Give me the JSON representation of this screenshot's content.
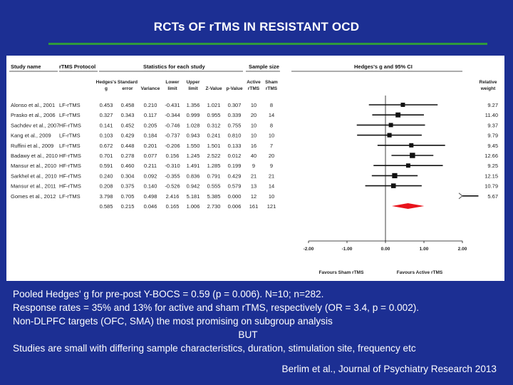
{
  "title": "RCTs OF rTMS IN RESISTANT OCD",
  "forest_plot": {
    "headers": {
      "study": "Study name",
      "protocol": "rTMS Protocol",
      "stats_group": "Statistics for each study",
      "sample_group": "Sample size",
      "ci_group": "Hedges's g and 95% CI",
      "hedges_g_1": "Hedges's",
      "hedges_g_2": "g",
      "se_1": "Standard",
      "se_2": "error",
      "variance": "Variance",
      "lower_1": "Lower",
      "lower_2": "limit",
      "upper_1": "Upper",
      "upper_2": "limit",
      "zvalue": "Z-Value",
      "pvalue": "p-Value",
      "active_1": "Active",
      "active_2": "rTMS",
      "sham_1": "Sham",
      "sham_2": "rTMS",
      "weight_1": "Relative",
      "weight_2": "weight"
    },
    "axis_ticks": [
      "-2.00",
      "-1.00",
      "0.00",
      "1.00",
      "2.00"
    ],
    "axis_label_left": "Favours Sham rTMS",
    "axis_label_right": "Favours Active rTMS"
  },
  "chart_data": {
    "type": "forest",
    "xlim": [
      -2,
      2
    ],
    "studies": [
      {
        "study": "Alonso et al., 2001",
        "protocol": "LF-rTMS",
        "g": "0.453",
        "se": "0.458",
        "variance": "0.210",
        "lower": "-0.431",
        "upper": "1.356",
        "z": "1.021",
        "p": "0.307",
        "active": "10",
        "sham": "8",
        "weight": "9.27"
      },
      {
        "study": "Prasko et al., 2006",
        "protocol": "LF-rTMS",
        "g": "0.327",
        "se": "0.343",
        "variance": "0.117",
        "lower": "-0.344",
        "upper": "0.999",
        "z": "0.955",
        "p": "0.339",
        "active": "20",
        "sham": "14",
        "weight": "11.40"
      },
      {
        "study": "Sachdev et al., 2007",
        "protocol": "HF-rTMS",
        "g": "0.141",
        "se": "0.452",
        "variance": "0.205",
        "lower": "-0.746",
        "upper": "1.028",
        "z": "0.312",
        "p": "0.755",
        "active": "10",
        "sham": "8",
        "weight": "9.37"
      },
      {
        "study": "Kang et al., 2009",
        "protocol": "LF-rTMS",
        "g": "0.103",
        "se": "0.429",
        "variance": "0.184",
        "lower": "-0.737",
        "upper": "0.943",
        "z": "0.241",
        "p": "0.810",
        "active": "10",
        "sham": "10",
        "weight": "9.79"
      },
      {
        "study": "Ruffini et al., 2009",
        "protocol": "LF-rTMS",
        "g": "0.672",
        "se": "0.448",
        "variance": "0.201",
        "lower": "-0.206",
        "upper": "1.550",
        "z": "1.501",
        "p": "0.133",
        "active": "16",
        "sham": "7",
        "weight": "9.45"
      },
      {
        "study": "Badawy et al., 2010",
        "protocol": "HF-rTMS",
        "g": "0.701",
        "se": "0.278",
        "variance": "0.077",
        "lower": "0.156",
        "upper": "1.245",
        "z": "2.522",
        "p": "0.012",
        "active": "40",
        "sham": "20",
        "weight": "12.66"
      },
      {
        "study": "Mansur et al., 2010",
        "protocol": "HF-rTMS",
        "g": "0.591",
        "se": "0.460",
        "variance": "0.211",
        "lower": "-0.310",
        "upper": "1.491",
        "z": "1.285",
        "p": "0.199",
        "active": "9",
        "sham": "9",
        "weight": "9.25"
      },
      {
        "study": "Sarkhel et al., 2010",
        "protocol": "HF-rTMS",
        "g": "0.240",
        "se": "0.304",
        "variance": "0.092",
        "lower": "-0.355",
        "upper": "0.836",
        "z": "0.791",
        "p": "0.429",
        "active": "21",
        "sham": "21",
        "weight": "12.15"
      },
      {
        "study": "Mansur et al., 2011",
        "protocol": "HF-rTMS",
        "g": "0.208",
        "se": "0.375",
        "variance": "0.140",
        "lower": "-0.526",
        "upper": "0.942",
        "z": "0.555",
        "p": "0.579",
        "active": "13",
        "sham": "14",
        "weight": "10.79"
      },
      {
        "study": "Gomes et al., 2012",
        "protocol": "LF-rTMS",
        "g": "3.798",
        "se": "0.705",
        "variance": "0.498",
        "lower": "2.416",
        "upper": "5.181",
        "z": "5.385",
        "p": "0.000",
        "active": "12",
        "sham": "10",
        "weight": "5.67"
      }
    ],
    "pooled": {
      "g": "0.585",
      "se": "0.215",
      "variance": "0.046",
      "lower": "0.165",
      "upper": "1.006",
      "z": "2.730",
      "p": "0.006",
      "active": "161",
      "sham": "121"
    }
  },
  "notes": {
    "line1": "Pooled Hedges' g for pre-post Y-BOCS = 0.59 (p = 0.006). N=10; n=282.",
    "line2": "Response rates = 35% and 13% for active and sham rTMS, respectively (OR = 3.4, p = 0.002).",
    "line3": "Non-DLPFC targets (OFC, SMA) the most promising on subgroup analysis",
    "line4": "BUT",
    "line5": "Studies are small with differing sample characteristics, duration, stimulation site, frequency etc",
    "citation": "Berlim et al., Journal of Psychiatry Research 2013"
  },
  "colors": {
    "background": "#1c2f93",
    "rule": "#2f9a3c",
    "pooled_diamond": "#e8141c"
  }
}
